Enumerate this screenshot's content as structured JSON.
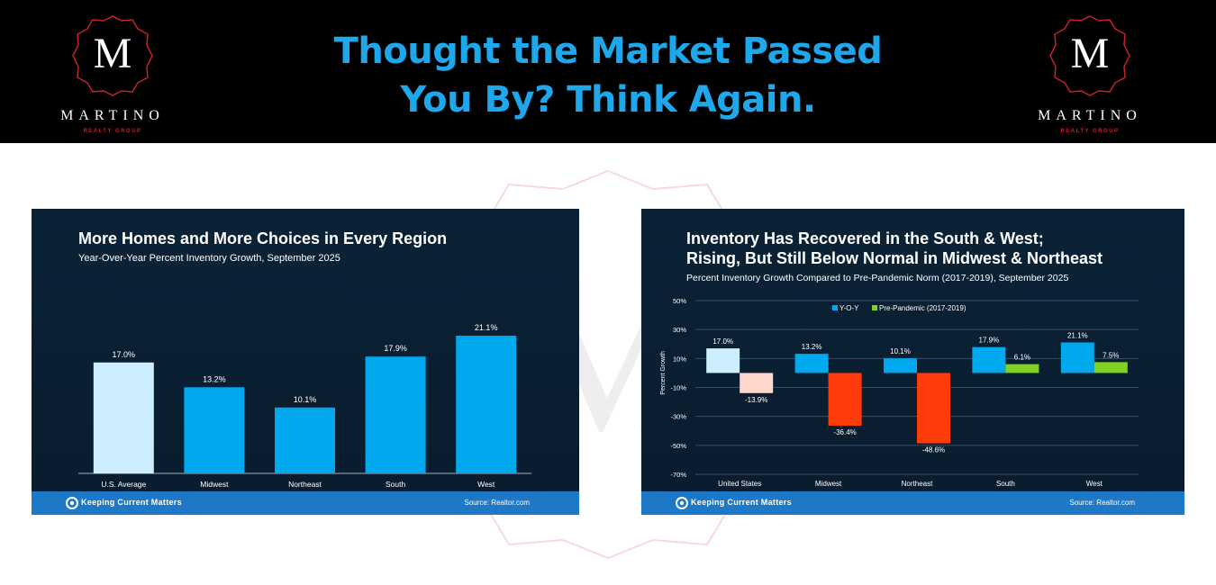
{
  "header": {
    "headline_line1": "Thought the Market Passed",
    "headline_line2": "You By? Think Again.",
    "logo_letter": "M",
    "logo_name": "MARTINO",
    "logo_sub": "REALTY GROUP"
  },
  "colors": {
    "headline": "#1fa7ec",
    "bar_blue": "#00a9ee",
    "bar_light": "#cdeefc",
    "bar_red": "#ff3b0a",
    "bar_pink": "#ffd6cc",
    "bar_green": "#7ed321",
    "footer_blue": "#1e78c8"
  },
  "footer": {
    "brand": "Keeping Current Matters",
    "source": "Source: Realtor.com"
  },
  "chart_data": [
    {
      "type": "bar",
      "title": "More Homes and More Choices in Every Region",
      "subtitle": "Year-Over-Year Percent Inventory Growth, September 2025",
      "categories": [
        "U.S. Average",
        "Midwest",
        "Northeast",
        "South",
        "West"
      ],
      "values": [
        17.0,
        13.2,
        10.1,
        17.9,
        21.1
      ],
      "value_labels": [
        "17.0%",
        "13.2%",
        "10.1%",
        "17.9%",
        "21.1%"
      ],
      "ylim": [
        0,
        24
      ],
      "xlabel": "",
      "ylabel": "",
      "grid": false,
      "source": "Source: Realtor.com"
    },
    {
      "type": "bar",
      "title_line1": "Inventory Has Recovered in the South & West;",
      "title_line2": "Rising, But Still Below Normal in Midwest & Northeast",
      "subtitle": "Percent Inventory Growth Compared to Pre-Pandemic Norm (2017-2019), September 2025",
      "categories": [
        "United States",
        "Midwest",
        "Northeast",
        "South",
        "West"
      ],
      "series": [
        {
          "name": "Y-O-Y",
          "values": [
            17.0,
            13.2,
            10.1,
            17.9,
            21.1
          ],
          "labels": [
            "17.0%",
            "13.2%",
            "10.1%",
            "17.9%",
            "21.1%"
          ]
        },
        {
          "name": "Pre-Pandemic (2017-2019)",
          "values": [
            -13.9,
            -36.4,
            -48.6,
            6.1,
            7.5
          ],
          "labels": [
            "-13.9%",
            "-36.4%",
            "-48.6%",
            "6.1%",
            "7.5%"
          ]
        }
      ],
      "yticks": [
        50,
        30,
        10,
        -10,
        -30,
        -50,
        -70
      ],
      "ytick_labels": [
        "50%",
        "30%",
        "10%",
        "-10%",
        "-30%",
        "-50%",
        "-70%"
      ],
      "ylim": [
        -70,
        50
      ],
      "ylabel": "Percent Growth",
      "xlabel": "",
      "legend": "top-center",
      "grid": true,
      "source": "Source: Realtor.com"
    }
  ]
}
